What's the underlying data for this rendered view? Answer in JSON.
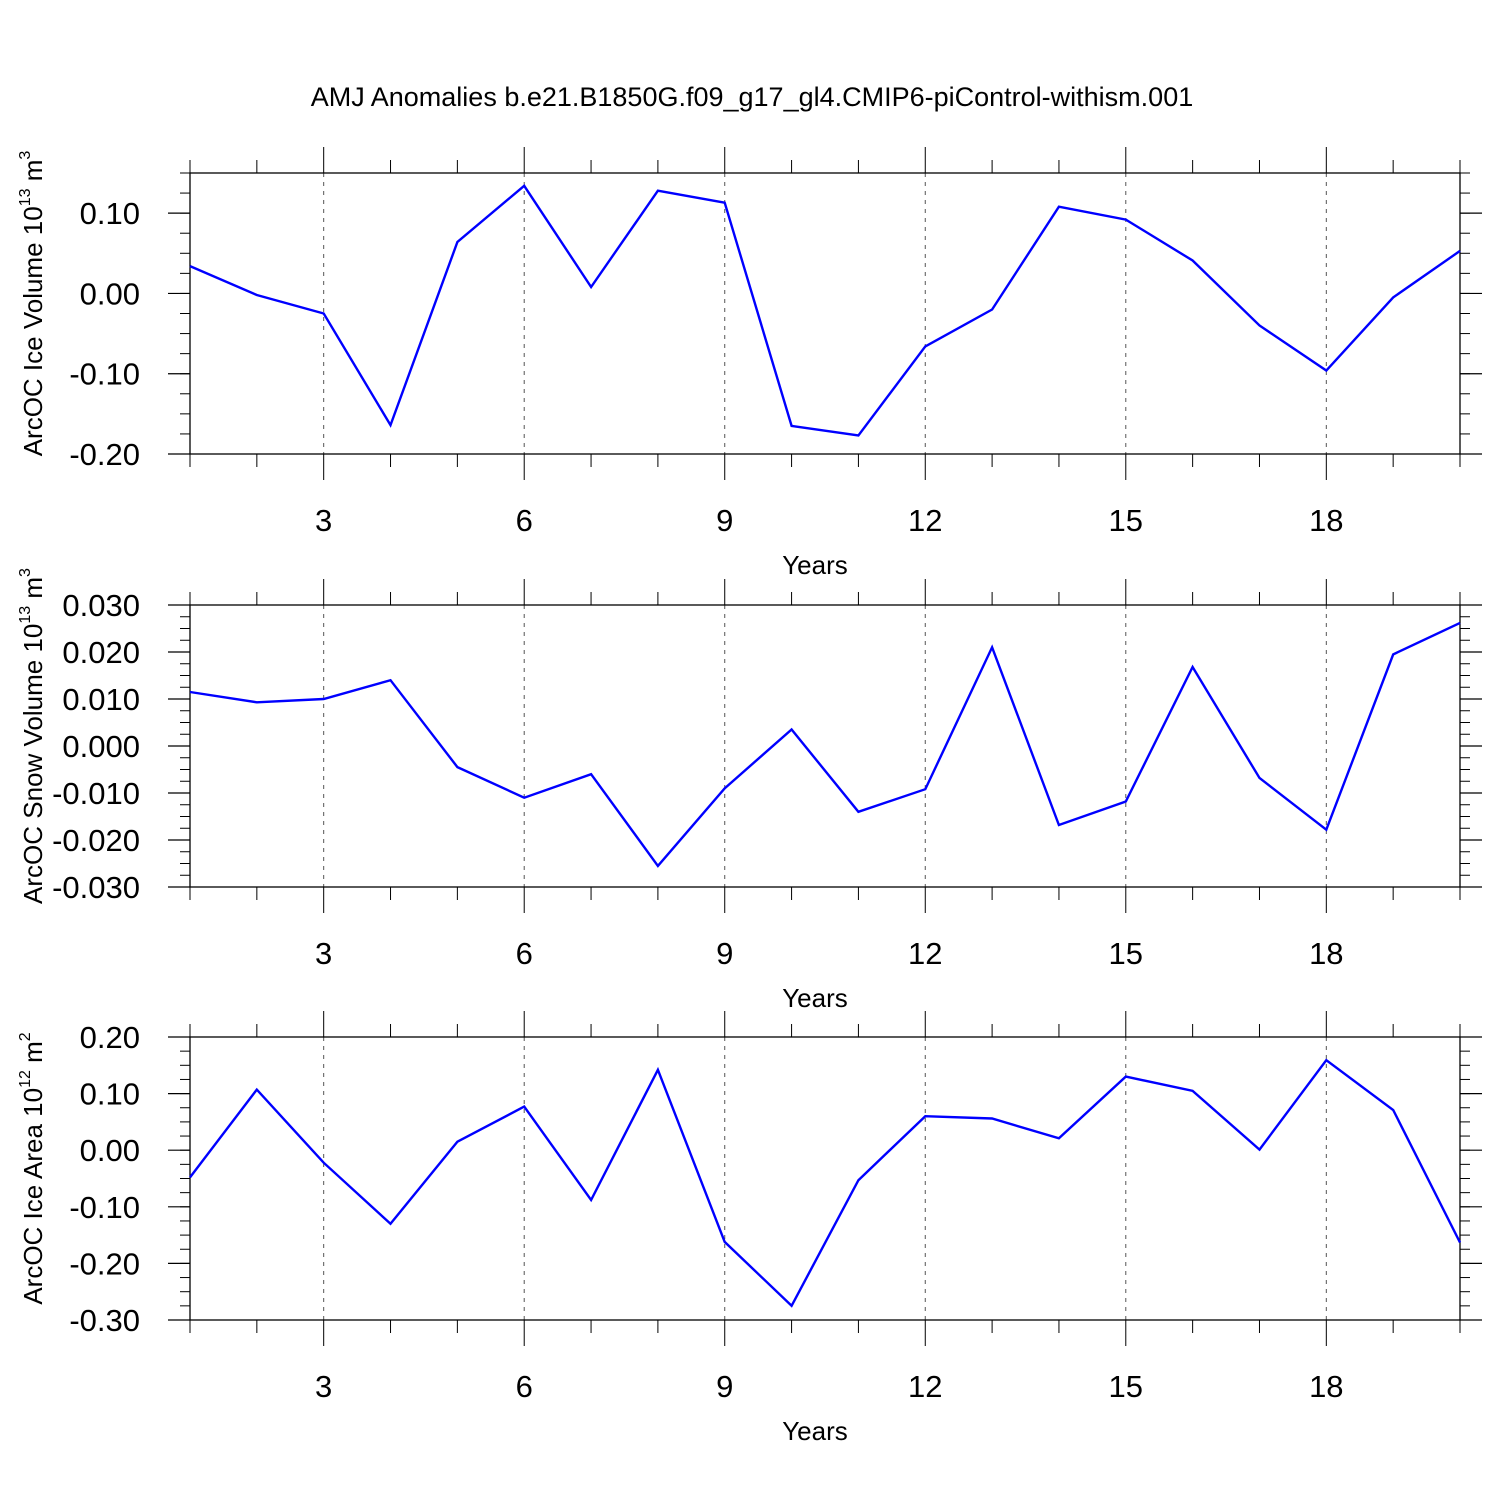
{
  "title": "AMJ Anomalies b.e21.B1850G.f09_g17_gl4.CMIP6-piControl-withism.001",
  "line_color": "#0000ff",
  "chart_data": [
    {
      "type": "line",
      "id": "ice-volume",
      "ylabel_main": "ArcOC Ice Volume 10",
      "ylabel_exp": "13",
      "ylabel_unit": " m",
      "ylabel_unit_exp": "3",
      "xlabel": "Years",
      "xlim": [
        1,
        20
      ],
      "ylim": [
        -0.2,
        0.15
      ],
      "xticks": [
        3,
        6,
        9,
        12,
        15,
        18
      ],
      "xtick_labels": [
        "3",
        "6",
        "9",
        "12",
        "15",
        "18"
      ],
      "yticks": [
        -0.2,
        -0.1,
        0.0,
        0.1
      ],
      "ytick_labels": [
        "-0.20",
        "-0.10",
        "0.00",
        "0.10"
      ],
      "yminor_step": 0.025,
      "x": [
        1,
        2,
        3,
        4,
        5,
        6,
        7,
        8,
        9,
        10,
        11,
        12,
        13,
        14,
        15,
        16,
        17,
        18,
        19,
        20
      ],
      "values": [
        0.034,
        -0.002,
        -0.025,
        -0.164,
        0.064,
        0.134,
        0.008,
        0.128,
        0.113,
        -0.165,
        -0.177,
        -0.066,
        -0.02,
        0.108,
        0.092,
        0.041,
        -0.04,
        -0.096,
        -0.005,
        0.053
      ]
    },
    {
      "type": "line",
      "id": "snow-volume",
      "ylabel_main": "ArcOC Snow Volume 10",
      "ylabel_exp": "13",
      "ylabel_unit": " m",
      "ylabel_unit_exp": "3",
      "xlabel": "Years",
      "xlim": [
        1,
        20
      ],
      "ylim": [
        -0.03,
        0.03
      ],
      "xticks": [
        3,
        6,
        9,
        12,
        15,
        18
      ],
      "xtick_labels": [
        "3",
        "6",
        "9",
        "12",
        "15",
        "18"
      ],
      "yticks": [
        -0.03,
        -0.02,
        -0.01,
        0.0,
        0.01,
        0.02,
        0.03
      ],
      "ytick_labels": [
        "-0.030",
        "-0.020",
        "-0.010",
        "0.000",
        "0.010",
        "0.020",
        "0.030"
      ],
      "yminor_step": 0.0025,
      "x": [
        1,
        2,
        3,
        4,
        5,
        6,
        7,
        8,
        9,
        10,
        11,
        12,
        13,
        14,
        15,
        16,
        17,
        18,
        19,
        20
      ],
      "values": [
        0.0115,
        0.0093,
        0.01,
        0.014,
        -0.0045,
        -0.011,
        -0.006,
        -0.0255,
        -0.009,
        0.0035,
        -0.014,
        -0.0092,
        0.021,
        -0.0168,
        -0.0118,
        0.0168,
        -0.0068,
        -0.0178,
        0.0195,
        0.0262
      ]
    },
    {
      "type": "line",
      "id": "ice-area",
      "ylabel_main": "ArcOC Ice Area 10",
      "ylabel_exp": "12",
      "ylabel_unit": " m",
      "ylabel_unit_exp": "2",
      "xlabel": "Years",
      "xlim": [
        1,
        20
      ],
      "ylim": [
        -0.3,
        0.2
      ],
      "xticks": [
        3,
        6,
        9,
        12,
        15,
        18
      ],
      "xtick_labels": [
        "3",
        "6",
        "9",
        "12",
        "15",
        "18"
      ],
      "yticks": [
        -0.3,
        -0.2,
        -0.1,
        0.0,
        0.1,
        0.2
      ],
      "ytick_labels": [
        "-0.30",
        "-0.20",
        "-0.10",
        "0.00",
        "0.10",
        "0.20"
      ],
      "yminor_step": 0.025,
      "x": [
        1,
        2,
        3,
        4,
        5,
        6,
        7,
        8,
        9,
        10,
        11,
        12,
        13,
        14,
        15,
        16,
        17,
        18,
        19,
        20
      ],
      "values": [
        -0.048,
        0.107,
        -0.022,
        -0.13,
        0.015,
        0.077,
        -0.088,
        0.142,
        -0.162,
        -0.275,
        -0.053,
        0.06,
        0.056,
        0.021,
        0.13,
        0.105,
        0.001,
        0.159,
        0.071,
        -0.163
      ]
    }
  ]
}
